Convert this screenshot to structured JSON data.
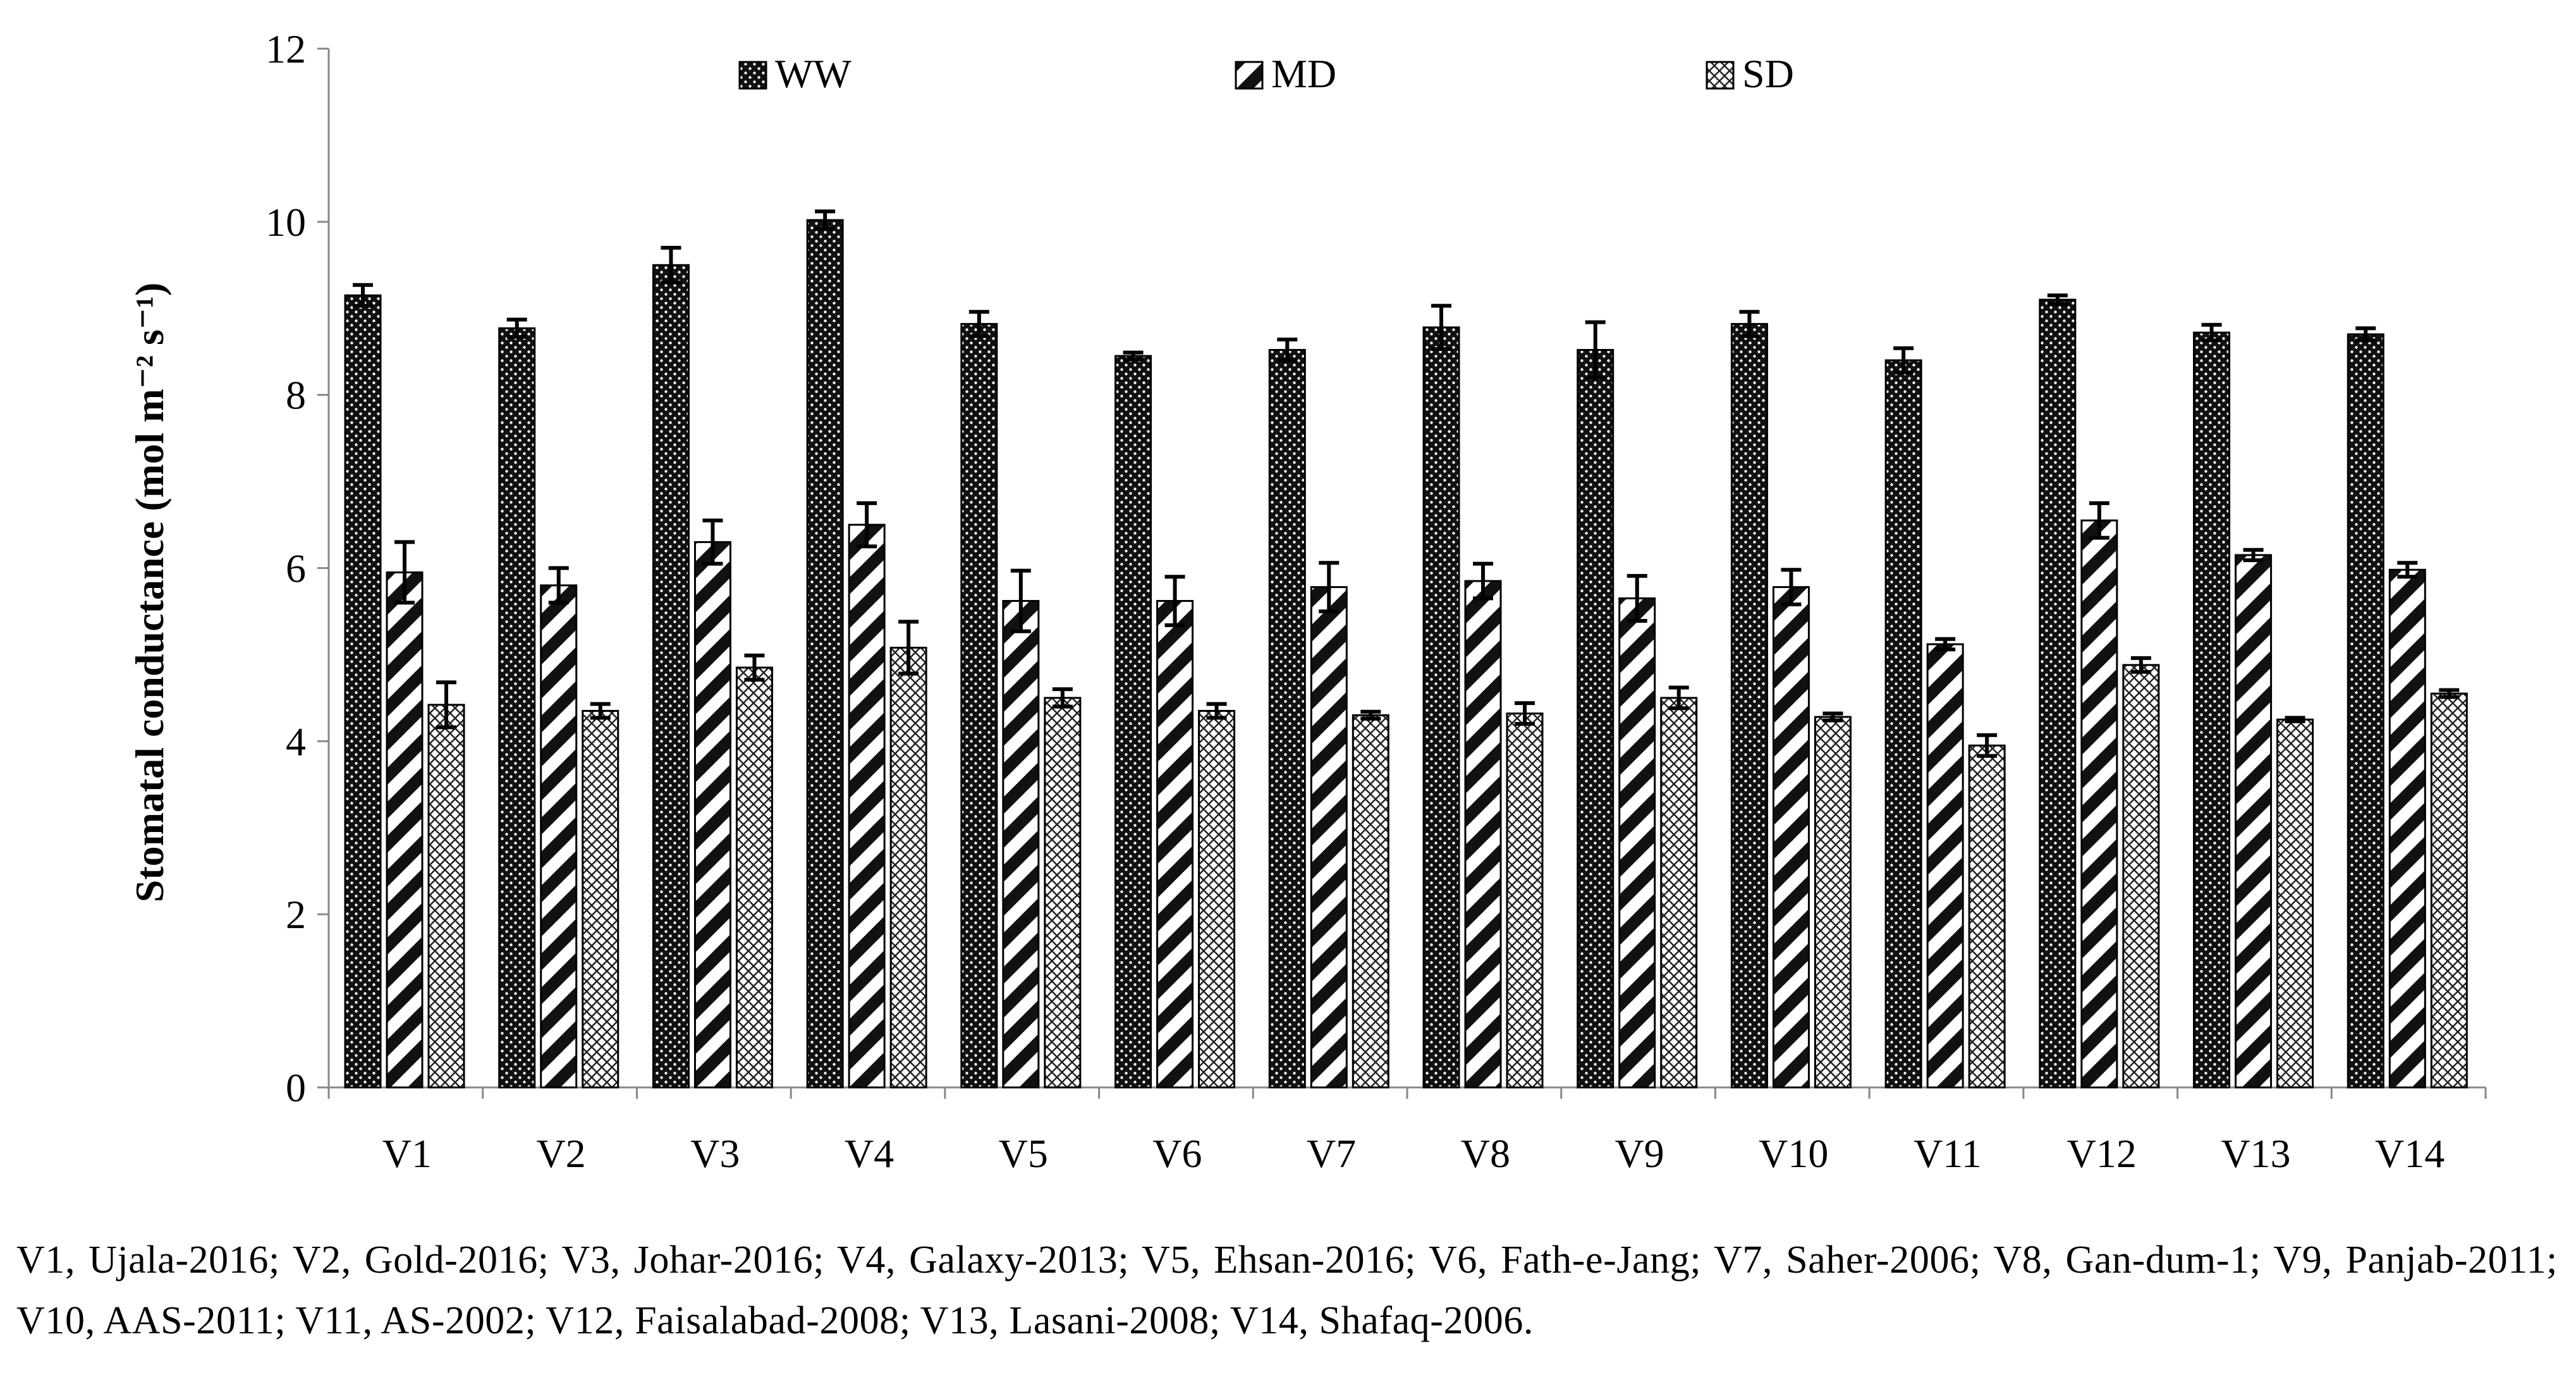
{
  "chart_data": {
    "type": "bar",
    "title": "",
    "xlabel": "",
    "ylabel": "Stomatal conductance (mol m⁻² s⁻¹)",
    "ylim": [
      0,
      12
    ],
    "yticks": [
      "0",
      "2",
      "4",
      "6",
      "8",
      "10",
      "12"
    ],
    "grid": false,
    "legend_position": "top",
    "categories": [
      "V1",
      "V2",
      "V3",
      "V4",
      "V5",
      "V6",
      "V7",
      "V8",
      "V9",
      "V10",
      "V11",
      "V12",
      "V13",
      "V14"
    ],
    "series": [
      {
        "name": "WW",
        "pattern": "dots",
        "values": [
          9.15,
          8.77,
          9.5,
          10.02,
          8.82,
          8.45,
          8.52,
          8.78,
          8.52,
          8.82,
          8.4,
          9.1,
          8.72,
          8.7
        ],
        "errors": [
          0.12,
          0.1,
          0.2,
          0.1,
          0.14,
          0.04,
          0.12,
          0.25,
          0.32,
          0.14,
          0.14,
          0.05,
          0.09,
          0.07
        ]
      },
      {
        "name": "MD",
        "pattern": "diagonal-stripes",
        "values": [
          5.95,
          5.8,
          6.3,
          6.5,
          5.62,
          5.62,
          5.78,
          5.85,
          5.65,
          5.78,
          5.12,
          6.55,
          6.15,
          5.98
        ],
        "errors": [
          0.35,
          0.2,
          0.25,
          0.25,
          0.35,
          0.28,
          0.28,
          0.2,
          0.26,
          0.2,
          0.06,
          0.2,
          0.06,
          0.08
        ]
      },
      {
        "name": "SD",
        "pattern": "crosshatch",
        "values": [
          4.42,
          4.35,
          4.85,
          5.08,
          4.5,
          4.35,
          4.3,
          4.32,
          4.5,
          4.28,
          3.95,
          4.88,
          4.25,
          4.55
        ],
        "errors": [
          0.26,
          0.08,
          0.14,
          0.3,
          0.1,
          0.08,
          0.04,
          0.12,
          0.12,
          0.04,
          0.12,
          0.08,
          0.02,
          0.04
        ]
      }
    ]
  },
  "caption": "V1, Ujala-2016; V2, Gold-2016; V3, Johar-2016; V4, Galaxy-2013; V5, Ehsan-2016; V6, Fath-e-Jang; V7, Saher-2006; V8, Gan-dum-1; V9, Panjab-2011; V10, AAS-2011; V11, AS-2002; V12, Faisalabad-2008; V13, Lasani-2008; V14, Shafaq-2006."
}
